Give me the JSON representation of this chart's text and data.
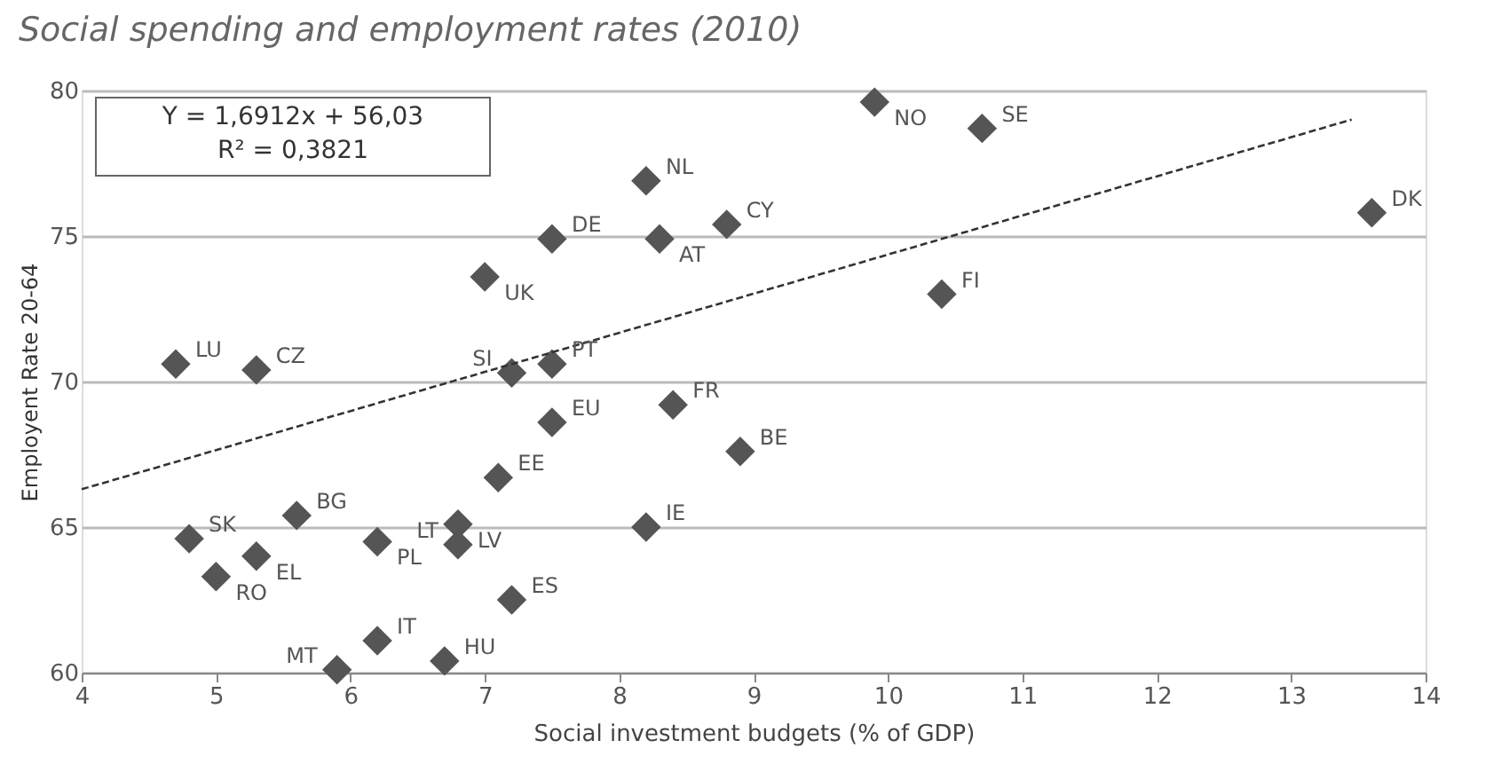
{
  "chart_data": {
    "type": "scatter",
    "title": "Social spending and employment rates (2010)",
    "xlabel": "Social investment budgets (% of GDP)",
    "ylabel": "Employent Rate 20-64",
    "xlim": [
      4,
      14
    ],
    "xticks": [
      4,
      5,
      6,
      7,
      8,
      9,
      10,
      11,
      12,
      13,
      14
    ],
    "ylim": [
      60,
      80
    ],
    "yticks": [
      60,
      65,
      70,
      75,
      80
    ],
    "grid": "y",
    "series": [
      {
        "type": "scatter",
        "marker": "diamond",
        "color": "#555555",
        "x": [
          4.7,
          5.3,
          7.0,
          7.2,
          7.5,
          7.5,
          8.2,
          8.3,
          8.8,
          8.4,
          8.9,
          7.5,
          7.1,
          8.2,
          6.8,
          6.8,
          7.2,
          6.7,
          5.6,
          4.8,
          5.3,
          5.0,
          6.2,
          6.2,
          5.9,
          9.9,
          10.7,
          10.4,
          13.6
        ],
        "values": [
          70.6,
          70.4,
          73.6,
          70.3,
          70.6,
          74.9,
          76.9,
          74.9,
          75.4,
          69.2,
          67.6,
          68.6,
          66.7,
          65.0,
          65.1,
          64.4,
          62.5,
          60.4,
          65.4,
          64.6,
          64.0,
          63.3,
          64.5,
          61.1,
          60.1,
          79.6,
          78.7,
          73.0,
          75.8
        ]
      },
      {
        "type": "line",
        "color": "#333333",
        "line_style": "dashed",
        "x": [
          4.0,
          13.45
        ],
        "values": [
          66.3,
          79.0
        ]
      }
    ],
    "annotations": [
      "Y = 1,6912x + 56,03",
      "R² = 0,3821",
      {
        "text": "LU",
        "x": 4.7,
        "y": 70.6
      },
      {
        "text": "CZ",
        "x": 5.3,
        "y": 70.4
      },
      {
        "text": "UK",
        "x": 7.0,
        "y": 73.6
      },
      {
        "text": "SI",
        "x": 7.2,
        "y": 70.3
      },
      {
        "text": "PT",
        "x": 7.5,
        "y": 70.6
      },
      {
        "text": "DE",
        "x": 7.5,
        "y": 74.9
      },
      {
        "text": "NL",
        "x": 8.2,
        "y": 76.9
      },
      {
        "text": "AT",
        "x": 8.3,
        "y": 74.9
      },
      {
        "text": "CY",
        "x": 8.8,
        "y": 75.4
      },
      {
        "text": "FR",
        "x": 8.4,
        "y": 69.2
      },
      {
        "text": "BE",
        "x": 8.9,
        "y": 67.6
      },
      {
        "text": "EU",
        "x": 7.5,
        "y": 68.6
      },
      {
        "text": "EE",
        "x": 7.1,
        "y": 66.7
      },
      {
        "text": "IE",
        "x": 8.2,
        "y": 65.0
      },
      {
        "text": "LV",
        "x": 6.8,
        "y": 65.1
      },
      {
        "text": "LT",
        "x": 6.8,
        "y": 64.4
      },
      {
        "text": "ES",
        "x": 7.2,
        "y": 62.5
      },
      {
        "text": "HU",
        "x": 6.7,
        "y": 60.4
      },
      {
        "text": "BG",
        "x": 5.6,
        "y": 65.4
      },
      {
        "text": "SK",
        "x": 4.8,
        "y": 64.6
      },
      {
        "text": "EL",
        "x": 5.3,
        "y": 64.0
      },
      {
        "text": "RO",
        "x": 5.0,
        "y": 63.3
      },
      {
        "text": "PL",
        "x": 6.2,
        "y": 64.5
      },
      {
        "text": "IT",
        "x": 6.2,
        "y": 61.1
      },
      {
        "text": "MT",
        "x": 5.9,
        "y": 60.1
      },
      {
        "text": "NO",
        "x": 9.9,
        "y": 79.6
      },
      {
        "text": "SE",
        "x": 10.7,
        "y": 78.7
      },
      {
        "text": "FI",
        "x": 10.4,
        "y": 73.0
      },
      {
        "text": "DK",
        "x": 13.6,
        "y": 75.8
      }
    ]
  }
}
